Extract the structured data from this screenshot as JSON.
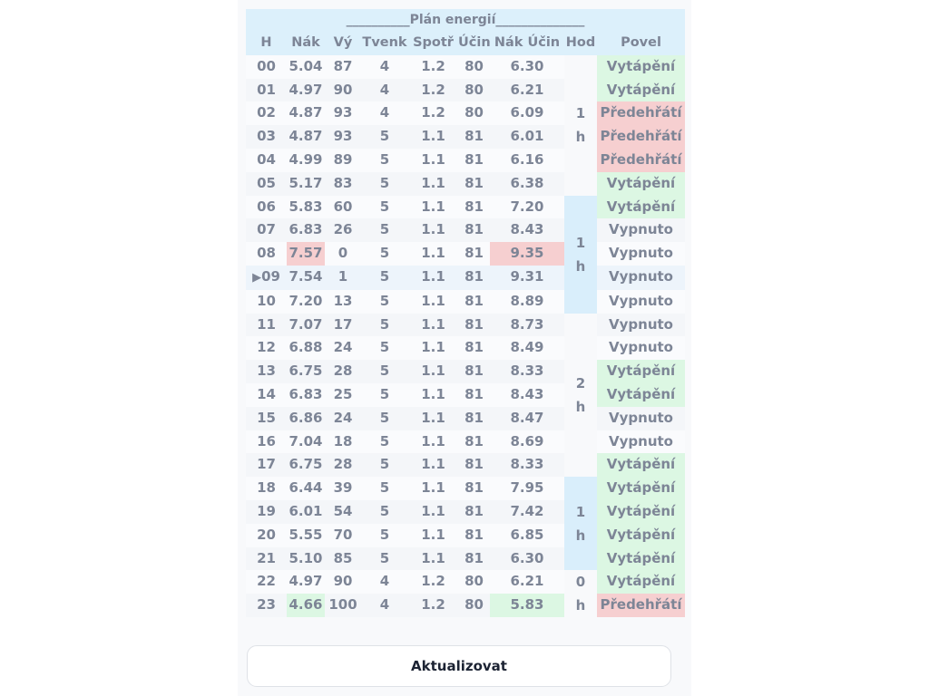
{
  "title": "__________Plán energií______________",
  "headers": [
    "H",
    "Nák",
    "Vý",
    "Tvenk",
    "Spotř",
    "Účin",
    "Nák Účin",
    "Hod",
    "Povel"
  ],
  "current_marker": "▶",
  "current_hour": "09",
  "colors": {
    "green": "#dcf7e3",
    "red": "#f6cfd0",
    "blue": "#d9eefb",
    "header": "#dcf0fb",
    "text": "#7d8596"
  },
  "rows": [
    {
      "h": "00",
      "nak": "5.04",
      "vy": "87",
      "tvenk": "4",
      "spotr": "1.2",
      "ucin": "80",
      "nakucin": "6.30",
      "povel": "Vytápění",
      "povel_color": "green"
    },
    {
      "h": "01",
      "nak": "4.97",
      "vy": "90",
      "tvenk": "4",
      "spotr": "1.2",
      "ucin": "80",
      "nakucin": "6.21",
      "povel": "Vytápění",
      "povel_color": "green"
    },
    {
      "h": "02",
      "nak": "4.87",
      "vy": "93",
      "tvenk": "4",
      "spotr": "1.2",
      "ucin": "80",
      "nakucin": "6.09",
      "povel": "Předehřátí",
      "povel_color": "red"
    },
    {
      "h": "03",
      "nak": "4.87",
      "vy": "93",
      "tvenk": "5",
      "spotr": "1.1",
      "ucin": "81",
      "nakucin": "6.01",
      "povel": "Předehřátí",
      "povel_color": "red"
    },
    {
      "h": "04",
      "nak": "4.99",
      "vy": "89",
      "tvenk": "5",
      "spotr": "1.1",
      "ucin": "81",
      "nakucin": "6.16",
      "povel": "Předehřátí",
      "povel_color": "red"
    },
    {
      "h": "05",
      "nak": "5.17",
      "vy": "83",
      "tvenk": "5",
      "spotr": "1.1",
      "ucin": "81",
      "nakucin": "6.38",
      "povel": "Vytápění",
      "povel_color": "green"
    },
    {
      "h": "06",
      "nak": "5.83",
      "vy": "60",
      "tvenk": "5",
      "spotr": "1.1",
      "ucin": "81",
      "nakucin": "7.20",
      "povel": "Vytápění",
      "povel_color": "green"
    },
    {
      "h": "07",
      "nak": "6.83",
      "vy": "26",
      "tvenk": "5",
      "spotr": "1.1",
      "ucin": "81",
      "nakucin": "8.43",
      "povel": "Vypnuto",
      "povel_color": ""
    },
    {
      "h": "08",
      "nak": "7.57",
      "vy": "0",
      "tvenk": "5",
      "spotr": "1.1",
      "ucin": "81",
      "nakucin": "9.35",
      "povel": "Vypnuto",
      "povel_color": "",
      "nak_color": "red",
      "nakucin_color": "red"
    },
    {
      "h": "09",
      "nak": "7.54",
      "vy": "1",
      "tvenk": "5",
      "spotr": "1.1",
      "ucin": "81",
      "nakucin": "9.31",
      "povel": "Vypnuto",
      "povel_color": "",
      "current": true
    },
    {
      "h": "10",
      "nak": "7.20",
      "vy": "13",
      "tvenk": "5",
      "spotr": "1.1",
      "ucin": "81",
      "nakucin": "8.89",
      "povel": "Vypnuto",
      "povel_color": ""
    },
    {
      "h": "11",
      "nak": "7.07",
      "vy": "17",
      "tvenk": "5",
      "spotr": "1.1",
      "ucin": "81",
      "nakucin": "8.73",
      "povel": "Vypnuto",
      "povel_color": ""
    },
    {
      "h": "12",
      "nak": "6.88",
      "vy": "24",
      "tvenk": "5",
      "spotr": "1.1",
      "ucin": "81",
      "nakucin": "8.49",
      "povel": "Vypnuto",
      "povel_color": ""
    },
    {
      "h": "13",
      "nak": "6.75",
      "vy": "28",
      "tvenk": "5",
      "spotr": "1.1",
      "ucin": "81",
      "nakucin": "8.33",
      "povel": "Vytápění",
      "povel_color": "green"
    },
    {
      "h": "14",
      "nak": "6.83",
      "vy": "25",
      "tvenk": "5",
      "spotr": "1.1",
      "ucin": "81",
      "nakucin": "8.43",
      "povel": "Vytápění",
      "povel_color": "green"
    },
    {
      "h": "15",
      "nak": "6.86",
      "vy": "24",
      "tvenk": "5",
      "spotr": "1.1",
      "ucin": "81",
      "nakucin": "8.47",
      "povel": "Vypnuto",
      "povel_color": ""
    },
    {
      "h": "16",
      "nak": "7.04",
      "vy": "18",
      "tvenk": "5",
      "spotr": "1.1",
      "ucin": "81",
      "nakucin": "8.69",
      "povel": "Vypnuto",
      "povel_color": ""
    },
    {
      "h": "17",
      "nak": "6.75",
      "vy": "28",
      "tvenk": "5",
      "spotr": "1.1",
      "ucin": "81",
      "nakucin": "8.33",
      "povel": "Vytápění",
      "povel_color": "green"
    },
    {
      "h": "18",
      "nak": "6.44",
      "vy": "39",
      "tvenk": "5",
      "spotr": "1.1",
      "ucin": "81",
      "nakucin": "7.95",
      "povel": "Vytápění",
      "povel_color": "green"
    },
    {
      "h": "19",
      "nak": "6.01",
      "vy": "54",
      "tvenk": "5",
      "spotr": "1.1",
      "ucin": "81",
      "nakucin": "7.42",
      "povel": "Vytápění",
      "povel_color": "green"
    },
    {
      "h": "20",
      "nak": "5.55",
      "vy": "70",
      "tvenk": "5",
      "spotr": "1.1",
      "ucin": "81",
      "nakucin": "6.85",
      "povel": "Vytápění",
      "povel_color": "green"
    },
    {
      "h": "21",
      "nak": "5.10",
      "vy": "85",
      "tvenk": "5",
      "spotr": "1.1",
      "ucin": "81",
      "nakucin": "6.30",
      "povel": "Vytápění",
      "povel_color": "green"
    },
    {
      "h": "22",
      "nak": "4.97",
      "vy": "90",
      "tvenk": "4",
      "spotr": "1.2",
      "ucin": "80",
      "nakucin": "6.21",
      "povel": "Vytápění",
      "povel_color": "green"
    },
    {
      "h": "23",
      "nak": "4.66",
      "vy": "100",
      "tvenk": "4",
      "spotr": "1.2",
      "ucin": "80",
      "nakucin": "5.83",
      "povel": "Předehřátí",
      "povel_color": "red",
      "nak_color": "green",
      "nakucin_color": "green"
    }
  ],
  "hod_blocks": [
    {
      "start": 0,
      "span": 6,
      "value": "1",
      "unit": "h",
      "color": ""
    },
    {
      "start": 6,
      "span": 5,
      "value": "1",
      "unit": "h",
      "color": "blue"
    },
    {
      "start": 11,
      "span": 7,
      "value": "2",
      "unit": "h",
      "color": ""
    },
    {
      "start": 18,
      "span": 4,
      "value": "1",
      "unit": "h",
      "color": "blue"
    },
    {
      "start": 22,
      "span": 2,
      "value": "0",
      "unit": "h",
      "color": ""
    }
  ],
  "button": {
    "label": "Aktualizovat"
  }
}
